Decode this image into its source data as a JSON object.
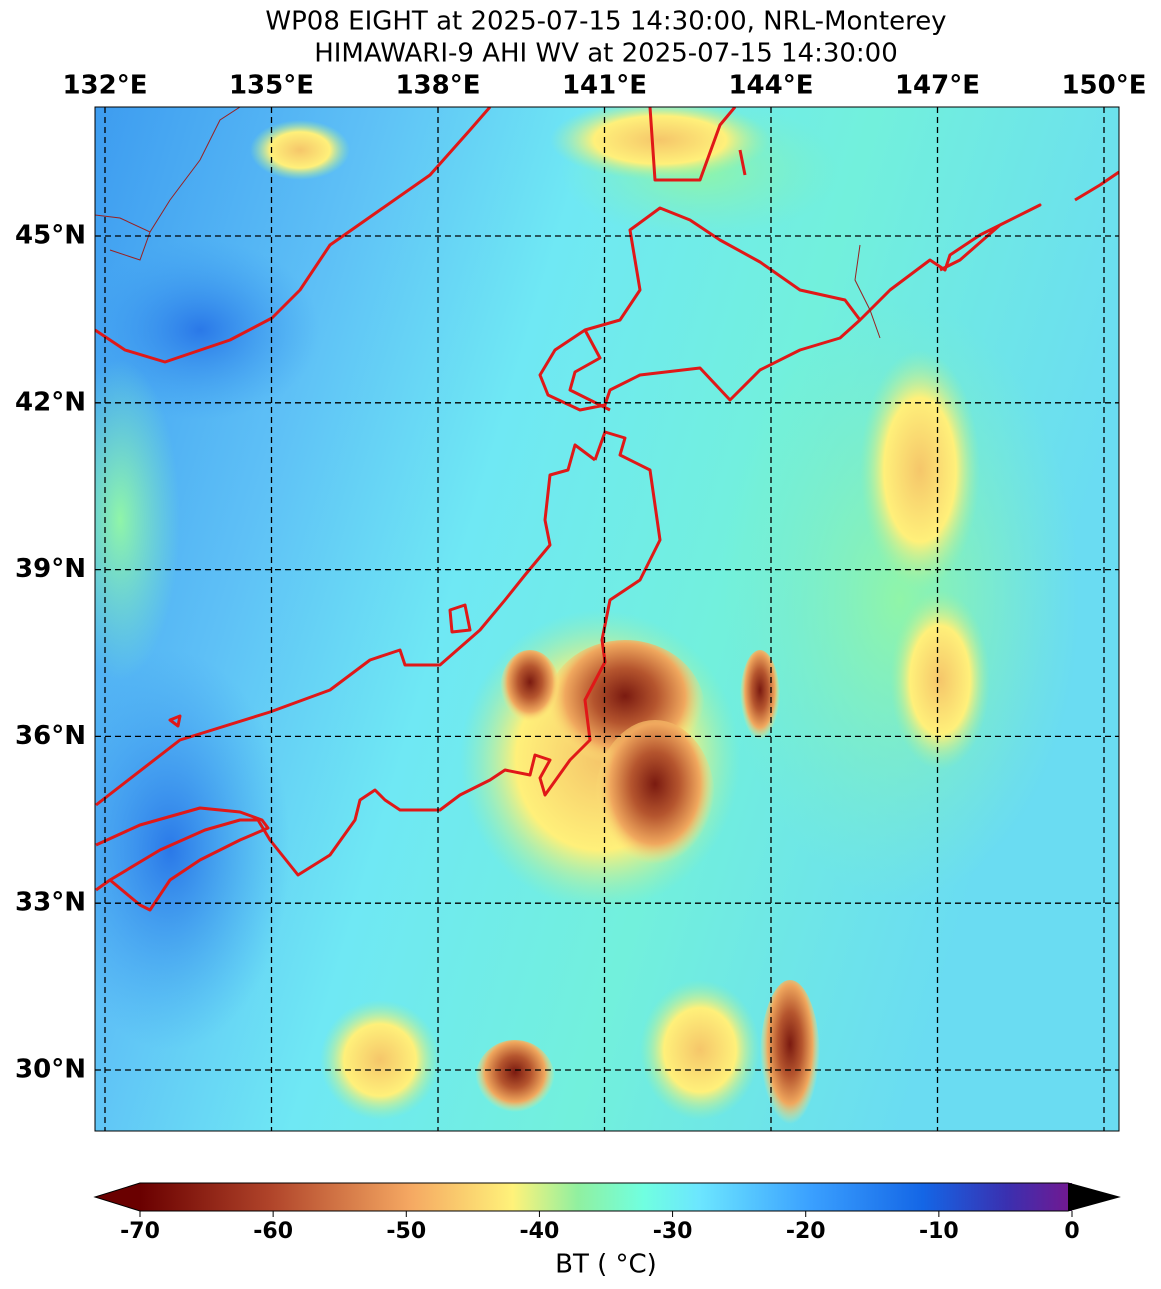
{
  "title": [
    "WP08 EIGHT at 2025-07-15 14:30:00, NRL-Monterey",
    "HIMAWARI-9 AHI WV at 2025-07-15 14:30:00"
  ],
  "map": {
    "lon_ticks": [
      {
        "value": 132,
        "label": "132°E"
      },
      {
        "value": 135,
        "label": "135°E"
      },
      {
        "value": 138,
        "label": "138°E"
      },
      {
        "value": 141,
        "label": "141°E"
      },
      {
        "value": 144,
        "label": "144°E"
      },
      {
        "value": 147,
        "label": "147°E"
      },
      {
        "value": 150,
        "label": "150°E"
      }
    ],
    "lat_ticks": [
      {
        "value": 45,
        "label": "45°N"
      },
      {
        "value": 42,
        "label": "42°N"
      },
      {
        "value": 39,
        "label": "39°N"
      },
      {
        "value": 36,
        "label": "36°N"
      },
      {
        "value": 33,
        "label": "33°N"
      },
      {
        "value": 30,
        "label": "30°N"
      }
    ]
  },
  "colorbar": {
    "label": "BT ( °C)",
    "lim": [
      -70,
      0
    ],
    "ticks": [
      -70,
      -60,
      -50,
      -40,
      -30,
      -20,
      -10,
      0
    ]
  }
}
